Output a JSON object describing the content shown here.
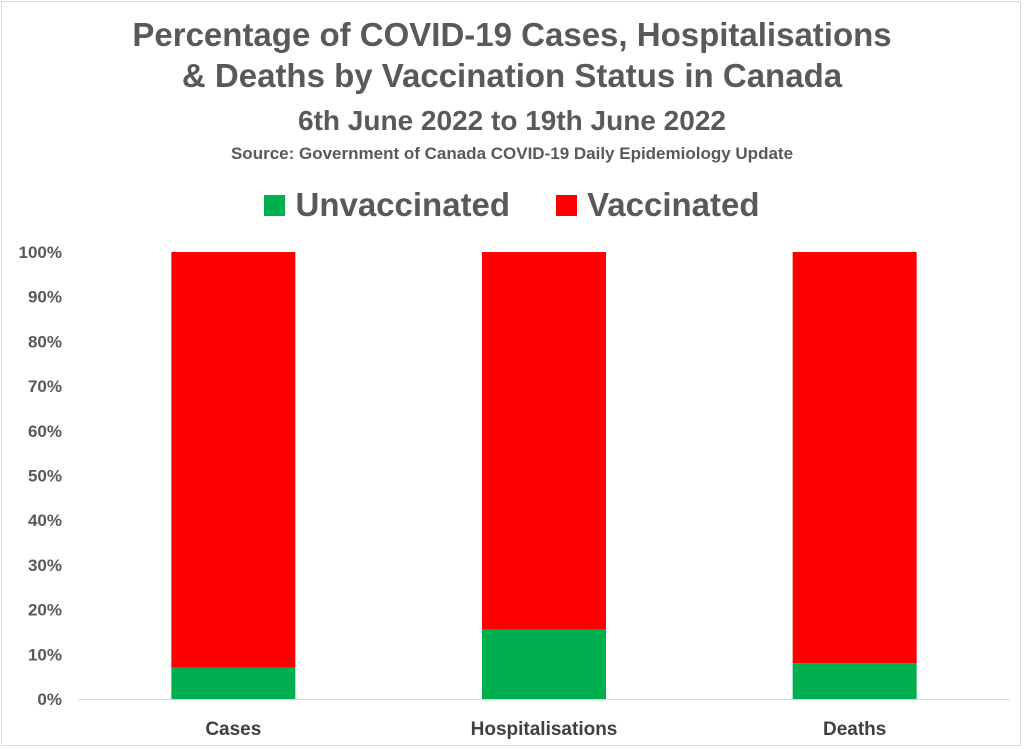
{
  "chart_data": {
    "type": "bar",
    "stacked": true,
    "normalized": true,
    "title": "Percentage of COVID-19 Cases, Hospitalisations & Deaths by Vaccination Status in Canada",
    "title_line1": "Percentage of COVID-19 Cases, Hospitalisations",
    "title_line2": "& Deaths by Vaccination Status in Canada",
    "subtitle": "6th June 2022 to 19th June 2022",
    "source": "Source: Government of Canada COVID-19 Daily Epidemiology Update",
    "categories": [
      "Cases",
      "Hospitalisations",
      "Deaths"
    ],
    "series": [
      {
        "name": "Unvaccinated",
        "color": "#00b050",
        "values": [
          7,
          15.5,
          8
        ]
      },
      {
        "name": "Vaccinated",
        "color": "#ff0000",
        "values": [
          93,
          84.5,
          92
        ]
      }
    ],
    "ylim": [
      0,
      100
    ],
    "yticks": [
      "0%",
      "10%",
      "20%",
      "30%",
      "40%",
      "50%",
      "60%",
      "70%",
      "80%",
      "90%",
      "100%"
    ],
    "xlabel": "",
    "ylabel": "",
    "legend_position": "top",
    "grid": false
  }
}
